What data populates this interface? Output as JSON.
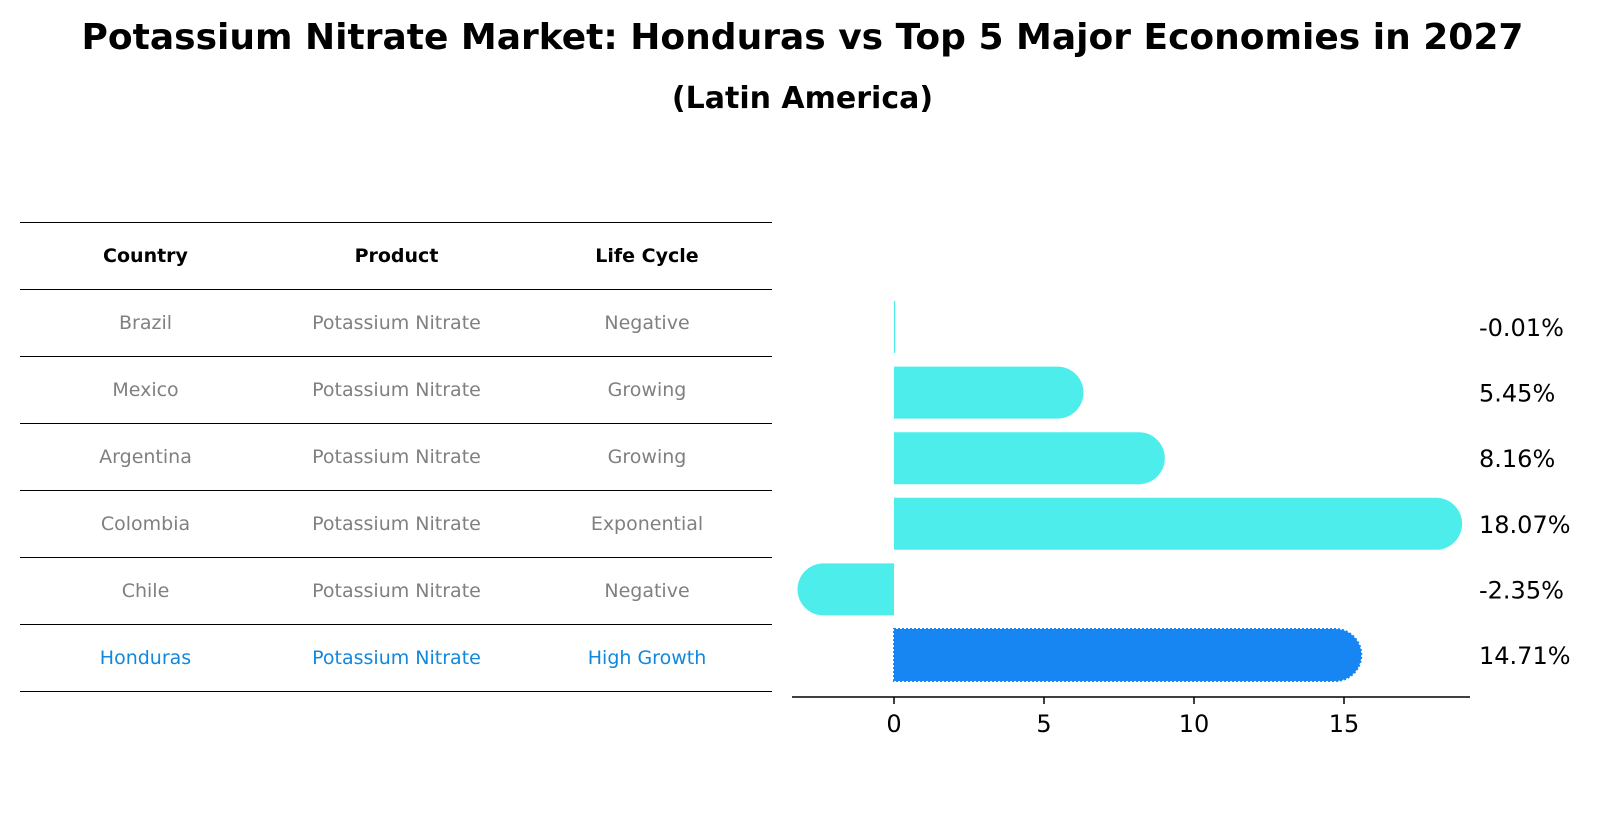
{
  "title": "Potassium Nitrate Market: Honduras vs Top 5 Major Economies in 2027",
  "subtitle": "(Latin America)",
  "table": {
    "headers": [
      "Country",
      "Product",
      "Life Cycle"
    ],
    "rows": [
      {
        "country": "Brazil",
        "product": "Potassium Nitrate",
        "life_cycle": "Negative"
      },
      {
        "country": "Mexico",
        "product": "Potassium Nitrate",
        "life_cycle": "Growing"
      },
      {
        "country": "Argentina",
        "product": "Potassium Nitrate",
        "life_cycle": "Growing"
      },
      {
        "country": "Colombia",
        "product": "Potassium Nitrate",
        "life_cycle": "Exponential"
      },
      {
        "country": "Chile",
        "product": "Potassium Nitrate",
        "life_cycle": "Negative"
      },
      {
        "country": "Honduras",
        "product": "Potassium Nitrate",
        "life_cycle": "High Growth"
      }
    ]
  },
  "colors": {
    "bar": "#4DEDEB",
    "highlight_bar": "#1785F2",
    "highlight_text": "#1188DD",
    "muted_text": "#808080"
  },
  "chart_data": {
    "type": "bar",
    "orientation": "horizontal",
    "categories": [
      "Brazil",
      "Mexico",
      "Argentina",
      "Colombia",
      "Chile",
      "Honduras"
    ],
    "values": [
      -0.01,
      5.45,
      8.16,
      18.07,
      -2.35,
      14.71
    ],
    "value_labels": [
      "-0.01%",
      "5.45%",
      "8.16%",
      "18.07%",
      "-2.35%",
      "14.71%"
    ],
    "highlight": "Honduras",
    "xlim": [
      -3.4,
      19.2
    ],
    "xticks": [
      0,
      5,
      10,
      15
    ],
    "xtick_labels": [
      "0",
      "5",
      "10",
      "15"
    ],
    "xlabel": "",
    "ylabel": "",
    "grid": false
  }
}
